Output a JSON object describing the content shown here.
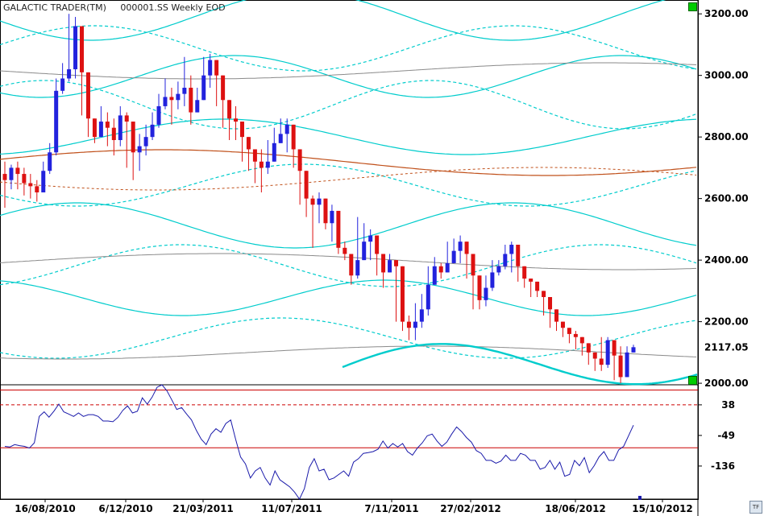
{
  "header": {
    "app_title": "GALACTIC TRADER(TM)",
    "symbol_info": "000001.SS Weekly EOD"
  },
  "last_price_label": "2117.05",
  "tf_label": "TF",
  "colors": {
    "up_candle": "#2222dd",
    "down_candle": "#dd1111",
    "cycle_line": "#00cccc",
    "brown_line": "#c0501a",
    "gray_line": "#8a8a8a",
    "oscillator": "#1a1aaa",
    "ref_line": "#cc0000",
    "corner_marker": "#00cc00"
  },
  "chart_data": [
    {
      "type": "candlestick",
      "title": "",
      "x_tick_labels": [
        "16/08/2010",
        "6/12/2010",
        "21/03/2011",
        "11/07/2011",
        "7/11/2011",
        "27/02/2012",
        "18/06/2012",
        "15/10/2012"
      ],
      "y_tick_labels": [
        "3200.00",
        "3000.00",
        "2800.00",
        "2600.00",
        "2400.00",
        "2200.00",
        "2000.00"
      ],
      "ylim": [
        1995,
        3245
      ],
      "grid": false,
      "last_value": 2117.05,
      "close": [
        2660,
        2700,
        2680,
        2650,
        2640,
        2620,
        2690,
        2750,
        2950,
        2990,
        3020,
        3160,
        3010,
        2860,
        2800,
        2850,
        2830,
        2790,
        2870,
        2850,
        2750,
        2770,
        2800,
        2840,
        2900,
        2930,
        2920,
        2940,
        2960,
        2880,
        2920,
        3000,
        3050,
        3000,
        2920,
        2860,
        2850,
        2800,
        2760,
        2720,
        2700,
        2720,
        2780,
        2810,
        2840,
        2760,
        2690,
        2600,
        2580,
        2600,
        2520,
        2560,
        2440,
        2420,
        2350,
        2400,
        2460,
        2480,
        2420,
        2360,
        2400,
        2380,
        2200,
        2180,
        2200,
        2240,
        2320,
        2380,
        2360,
        2390,
        2430,
        2460,
        2420,
        2350,
        2270,
        2310,
        2360,
        2380,
        2420,
        2450,
        2380,
        2340,
        2330,
        2300,
        2280,
        2240,
        2200,
        2180,
        2160,
        2150,
        2130,
        2100,
        2080,
        2060,
        2140,
        2090,
        2020,
        2100,
        2117.05
      ],
      "high": [
        2720,
        2710,
        2720,
        2700,
        2680,
        2660,
        2720,
        2780,
        2990,
        3040,
        3200,
        3190,
        3050,
        2900,
        2860,
        2900,
        2880,
        2860,
        2900,
        2880,
        2800,
        2810,
        2840,
        2880,
        2940,
        2990,
        2960,
        2980,
        3060,
        3000,
        2960,
        3060,
        3070,
        3040,
        2950,
        2900,
        2900,
        2840,
        2800,
        2760,
        2760,
        2790,
        2830,
        2860,
        2860,
        2800,
        2700,
        2640,
        2610,
        2620,
        2560,
        2580,
        2480,
        2460,
        2410,
        2540,
        2520,
        2500,
        2460,
        2410,
        2420,
        2390,
        2240,
        2220,
        2260,
        2290,
        2380,
        2410,
        2390,
        2460,
        2470,
        2480,
        2440,
        2380,
        2300,
        2350,
        2400,
        2400,
        2450,
        2460,
        2420,
        2370,
        2340,
        2330,
        2300,
        2270,
        2230,
        2200,
        2170,
        2170,
        2140,
        2120,
        2100,
        2150,
        2150,
        2110,
        2120,
        2120,
        2125
      ],
      "low": [
        2570,
        2630,
        2630,
        2610,
        2600,
        2590,
        2640,
        2680,
        2740,
        2940,
        2980,
        2990,
        2870,
        2800,
        2780,
        2800,
        2770,
        2740,
        2770,
        2700,
        2660,
        2690,
        2740,
        2790,
        2830,
        2890,
        2840,
        2890,
        2900,
        2840,
        2880,
        2920,
        2960,
        2900,
        2830,
        2790,
        2790,
        2720,
        2690,
        2650,
        2620,
        2680,
        2740,
        2790,
        2750,
        2700,
        2580,
        2540,
        2440,
        2520,
        2500,
        2460,
        2420,
        2400,
        2320,
        2340,
        2440,
        2400,
        2350,
        2310,
        2370,
        2200,
        2170,
        2140,
        2140,
        2180,
        2220,
        2340,
        2340,
        2360,
        2390,
        2390,
        2340,
        2240,
        2240,
        2250,
        2300,
        2350,
        2370,
        2360,
        2330,
        2310,
        2280,
        2280,
        2220,
        2180,
        2170,
        2150,
        2130,
        2110,
        2090,
        2060,
        2040,
        2040,
        2050,
        2010,
        2000,
        2080,
        2100
      ]
    },
    {
      "type": "line",
      "title": "",
      "y_tick_labels": [
        "38",
        "-49",
        "-136"
      ],
      "ylim": [
        -230,
        95
      ],
      "reference_lines": [
        80,
        38,
        -84
      ],
      "values": [
        -80,
        -82,
        -75,
        -78,
        -80,
        -85,
        -70,
        5,
        18,
        3,
        20,
        40,
        18,
        12,
        5,
        15,
        5,
        10,
        10,
        5,
        -8,
        -8,
        -10,
        2,
        22,
        35,
        15,
        20,
        58,
        40,
        60,
        88,
        95,
        78,
        52,
        25,
        30,
        12,
        -5,
        -35,
        -60,
        -75,
        -45,
        -30,
        -40,
        -15,
        -5,
        -60,
        -110,
        -130,
        -170,
        -150,
        -140,
        -170,
        -190,
        -150,
        -175,
        -185,
        -195,
        -210,
        -230,
        -200,
        -140,
        -115,
        -150,
        -145,
        -175,
        -170,
        -160,
        -150,
        -165,
        -125,
        -115,
        -100,
        -98,
        -95,
        -88,
        -65,
        -85,
        -72,
        -82,
        -72,
        -95,
        -105,
        -85,
        -70,
        -50,
        -45,
        -65,
        -80,
        -68,
        -45,
        -25,
        -38,
        -55,
        -68,
        -92,
        -100,
        -120,
        -120,
        -128,
        -122,
        -105,
        -120,
        -120,
        -100,
        -105,
        -120,
        -120,
        -145,
        -140,
        -120,
        -145,
        -125,
        -165,
        -160,
        -120,
        -135,
        -112,
        -155,
        -135,
        -110,
        -95,
        -120,
        -120,
        -90,
        -80,
        -50,
        -20
      ]
    }
  ]
}
